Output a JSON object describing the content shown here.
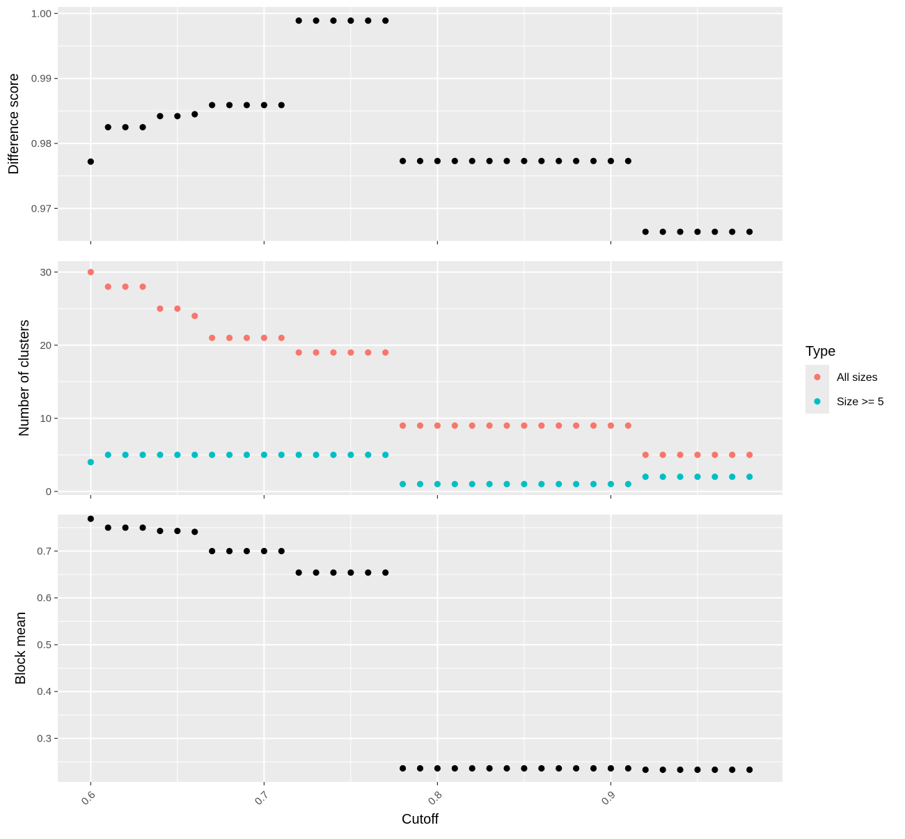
{
  "chart_data": {
    "type": "scatter",
    "xlabel": "Cutoff",
    "xlim": [
      0.581,
      0.999
    ],
    "x_ticks": [
      0.6,
      0.7,
      0.8,
      0.9
    ],
    "x_tick_labels": [
      "0.6",
      "0.7",
      "0.8",
      "0.9"
    ],
    "x": [
      0.6,
      0.61,
      0.62,
      0.63,
      0.64,
      0.65,
      0.66,
      0.67,
      0.68,
      0.69,
      0.7,
      0.71,
      0.72,
      0.73,
      0.74,
      0.75,
      0.76,
      0.77,
      0.78,
      0.79,
      0.8,
      0.81,
      0.82,
      0.83,
      0.84,
      0.85,
      0.86,
      0.87,
      0.88,
      0.89,
      0.9,
      0.91,
      0.92,
      0.93,
      0.94,
      0.95,
      0.96,
      0.97,
      0.98
    ],
    "grid": true,
    "colors": {
      "panel_bg": "#EBEBEB",
      "grid": "#FFFFFF",
      "default_point": "#000000",
      "all_sizes": "#F8766D",
      "size_ge_5": "#00BFC4"
    },
    "legend": {
      "title": "Type",
      "position": "right",
      "entries": [
        "All sizes",
        "Size >= 5"
      ]
    },
    "panels": [
      {
        "ylabel": "Difference score",
        "ylim": [
          0.965,
          1.001
        ],
        "y_ticks": [
          0.97,
          0.98,
          0.99,
          1.0
        ],
        "y_tick_labels": [
          "0.97",
          "0.98",
          "0.99",
          "1.00"
        ],
        "series": [
          {
            "color": "#000000",
            "values": [
              0.9772,
              0.9825,
              0.9825,
              0.9825,
              0.9842,
              0.9842,
              0.9845,
              0.9859,
              0.9859,
              0.9859,
              0.9859,
              0.9859,
              0.9989,
              0.9989,
              0.9989,
              0.9989,
              0.9989,
              0.9989,
              0.9773,
              0.9773,
              0.9773,
              0.9773,
              0.9773,
              0.9773,
              0.9773,
              0.9773,
              0.9773,
              0.9773,
              0.9773,
              0.9773,
              0.9773,
              0.9773,
              0.9664,
              0.9664,
              0.9664,
              0.9664,
              0.9664,
              0.9664,
              0.9664
            ]
          }
        ]
      },
      {
        "ylabel": "Number of clusters",
        "ylim": [
          -0.5,
          31.5
        ],
        "y_ticks": [
          0,
          10,
          20,
          30
        ],
        "y_tick_labels": [
          "0",
          "10",
          "20",
          "30"
        ],
        "series": [
          {
            "name": "All sizes",
            "color": "#F8766D",
            "values": [
              30,
              28,
              28,
              28,
              25,
              25,
              24,
              21,
              21,
              21,
              21,
              21,
              19,
              19,
              19,
              19,
              19,
              19,
              9,
              9,
              9,
              9,
              9,
              9,
              9,
              9,
              9,
              9,
              9,
              9,
              9,
              9,
              5,
              5,
              5,
              5,
              5,
              5,
              5
            ]
          },
          {
            "name": "Size >= 5",
            "color": "#00BFC4",
            "values": [
              4,
              5,
              5,
              5,
              5,
              5,
              5,
              5,
              5,
              5,
              5,
              5,
              5,
              5,
              5,
              5,
              5,
              5,
              1,
              1,
              1,
              1,
              1,
              1,
              1,
              1,
              1,
              1,
              1,
              1,
              1,
              1,
              2,
              2,
              2,
              2,
              2,
              2,
              2
            ]
          }
        ]
      },
      {
        "ylabel": "Block mean",
        "ylim": [
          0.207,
          0.778
        ],
        "y_ticks": [
          0.3,
          0.4,
          0.5,
          0.6,
          0.7
        ],
        "y_tick_labels": [
          "0.3",
          "0.4",
          "0.5",
          "0.6",
          "0.7"
        ],
        "series": [
          {
            "color": "#000000",
            "values": [
              0.769,
              0.75,
              0.75,
              0.75,
              0.743,
              0.743,
              0.741,
              0.7,
              0.7,
              0.7,
              0.7,
              0.7,
              0.654,
              0.654,
              0.654,
              0.654,
              0.654,
              0.654,
              0.236,
              0.236,
              0.236,
              0.236,
              0.236,
              0.236,
              0.236,
              0.236,
              0.236,
              0.236,
              0.236,
              0.236,
              0.236,
              0.236,
              0.233,
              0.233,
              0.233,
              0.233,
              0.233,
              0.233,
              0.233
            ]
          }
        ]
      }
    ]
  }
}
